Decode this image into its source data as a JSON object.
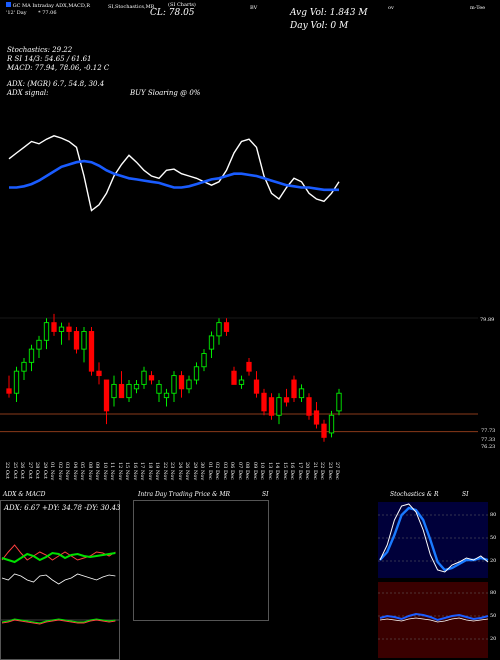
{
  "header": {
    "left_line1": "GC MA Intraday ADX,MACD,R",
    "left_line2": "'12' Day",
    "left_line2b": "* 77.06",
    "center_labels": "SI,Stochastics,MR",
    "center_small": "(SI Charts)",
    "close_label": "CL: 78.05",
    "bv_label": "BV",
    "avg_vol": "Avg Vol: 1.843 M",
    "day_vol": "Day Vol: 0  M",
    "right_small1": "ov",
    "right_small2": "m-Tee"
  },
  "indicators": {
    "stochastics": "Stochastics: 29.22",
    "r_line": "R           SI 14/3: 54.65 / 61.61",
    "macd": "MACD: 77.94, 78.06, -0.12  C",
    "adx": "ADX:                              (MGR) 6.7, 54.8, 30.4",
    "adx_signal": "ADX  signal:",
    "buy_signal": "BUY Sloaring @ 0%"
  },
  "price_axis": {
    "top_label": "79.89",
    "low_label1": "77.73",
    "low_label2": "77.33",
    "low_label3": "76.23"
  },
  "dates": [
    "22 Oct",
    "25 Oct",
    "26 Oct",
    "27 Oct",
    "28 Oct",
    "29 Oct",
    "01 Nov",
    "02 Nov",
    "03 Nov",
    "04 Nov",
    "05 Nov",
    "08 Nov",
    "09 Nov",
    "10 Nov",
    "11 Nov",
    "12 Nov",
    "15 Nov",
    "16 Nov",
    "17 Nov",
    "18 Nov",
    "19 Nov",
    "22 Nov",
    "23 Nov",
    "24 Nov",
    "26 Nov",
    "29 Nov",
    "30 Nov",
    "01 Dec",
    "02 Dec",
    "03 Dec",
    "06 Dec",
    "07 Dec",
    "08 Dec",
    "09 Dec",
    "10 Dec",
    "13 Dec",
    "14 Dec",
    "15 Dec",
    "16 Dec",
    "17 Dec",
    "20 Dec",
    "21 Dec",
    "22 Dec",
    "23 Dec",
    "27 Dec"
  ],
  "panels": {
    "adx_title": "ADX  & MACD",
    "adx_values": "ADX: 6.67  +DY: 34.78  -DY: 30.43",
    "intra_title": "Intra  Day Trading Price  & MR",
    "intra_si": "SI",
    "stoch_title": "Stochastics & R",
    "stoch_si": "SI",
    "stoch_levels": [
      "80",
      "50",
      "20"
    ],
    "rsi_levels": [
      "80",
      "50",
      "20"
    ]
  },
  "colors": {
    "up": "#00ee00",
    "down": "#ff0000",
    "ma": "#1a5cff",
    "level": "#8a3a1a",
    "stoch_bg": "#00003a"
  },
  "chart_data": {
    "type": "candlestick",
    "candles": [
      [
        78.3,
        78.6,
        78.1,
        78.2
      ],
      [
        78.2,
        78.8,
        78.0,
        78.7
      ],
      [
        78.7,
        79.0,
        78.5,
        78.9
      ],
      [
        78.9,
        79.3,
        78.7,
        79.2
      ],
      [
        79.2,
        79.5,
        79.0,
        79.4
      ],
      [
        79.4,
        79.9,
        79.2,
        79.8
      ],
      [
        79.8,
        80.0,
        79.5,
        79.6
      ],
      [
        79.6,
        79.8,
        79.3,
        79.7
      ],
      [
        79.7,
        79.8,
        79.4,
        79.6
      ],
      [
        79.6,
        79.7,
        79.1,
        79.2
      ],
      [
        79.2,
        79.7,
        78.9,
        79.6
      ],
      [
        79.6,
        79.7,
        78.6,
        78.7
      ],
      [
        78.7,
        78.9,
        78.4,
        78.6
      ],
      [
        78.5,
        78.5,
        77.5,
        77.8
      ],
      [
        78.1,
        78.6,
        77.9,
        78.4
      ],
      [
        78.4,
        78.7,
        78.1,
        78.1
      ],
      [
        78.1,
        78.5,
        78.0,
        78.4
      ],
      [
        78.3,
        78.5,
        78.2,
        78.4
      ],
      [
        78.4,
        78.8,
        78.3,
        78.7
      ],
      [
        78.6,
        78.7,
        78.4,
        78.5
      ],
      [
        78.2,
        78.5,
        78.0,
        78.4
      ],
      [
        78.1,
        78.3,
        77.9,
        78.2
      ],
      [
        78.2,
        78.7,
        78.0,
        78.6
      ],
      [
        78.6,
        78.7,
        78.1,
        78.3
      ],
      [
        78.3,
        78.6,
        78.2,
        78.5
      ],
      [
        78.5,
        78.9,
        78.4,
        78.8
      ],
      [
        78.8,
        79.2,
        78.7,
        79.1
      ],
      [
        79.2,
        79.6,
        79.0,
        79.5
      ],
      [
        79.5,
        79.9,
        79.3,
        79.8
      ],
      [
        79.8,
        79.9,
        79.5,
        79.6
      ],
      [
        78.7,
        78.8,
        78.4,
        78.4
      ],
      [
        78.4,
        78.6,
        78.3,
        78.5
      ],
      [
        78.9,
        79.0,
        78.6,
        78.7
      ],
      [
        78.5,
        78.7,
        78.1,
        78.2
      ],
      [
        78.2,
        78.3,
        77.7,
        77.8
      ],
      [
        78.1,
        78.2,
        77.6,
        77.7
      ],
      [
        77.7,
        78.2,
        77.5,
        78.1
      ],
      [
        78.1,
        78.3,
        77.9,
        78.0
      ],
      [
        78.5,
        78.6,
        78.0,
        78.1
      ],
      [
        78.1,
        78.4,
        78.0,
        78.3
      ],
      [
        78.1,
        78.2,
        77.6,
        77.7
      ],
      [
        77.8,
        78.0,
        77.4,
        77.5
      ],
      [
        77.5,
        77.6,
        77.1,
        77.2
      ],
      [
        77.3,
        77.8,
        77.2,
        77.7
      ],
      [
        77.8,
        78.3,
        77.7,
        78.2
      ]
    ],
    "ylim": [
      76.8,
      80.2
    ],
    "levels": [
      77.73,
      77.33
    ],
    "stoch_line": [
      75,
      80,
      85,
      90,
      88,
      92,
      95,
      93,
      90,
      85,
      60,
      30,
      35,
      45,
      60,
      70,
      78,
      72,
      65,
      60,
      58,
      65,
      66,
      62,
      60,
      58,
      55,
      52,
      55,
      65,
      80,
      90,
      92,
      85,
      60,
      45,
      40,
      50,
      58,
      55,
      45,
      40,
      38,
      45,
      55
    ],
    "ma_line": [
      50,
      50,
      51,
      53,
      56,
      60,
      64,
      68,
      70,
      72,
      73,
      72,
      69,
      65,
      62,
      60,
      58,
      57,
      56,
      55,
      54,
      52,
      50,
      50,
      51,
      53,
      55,
      57,
      58,
      60,
      62,
      62,
      61,
      60,
      58,
      56,
      54,
      52,
      51,
      50,
      50,
      49,
      48,
      48,
      48
    ]
  }
}
